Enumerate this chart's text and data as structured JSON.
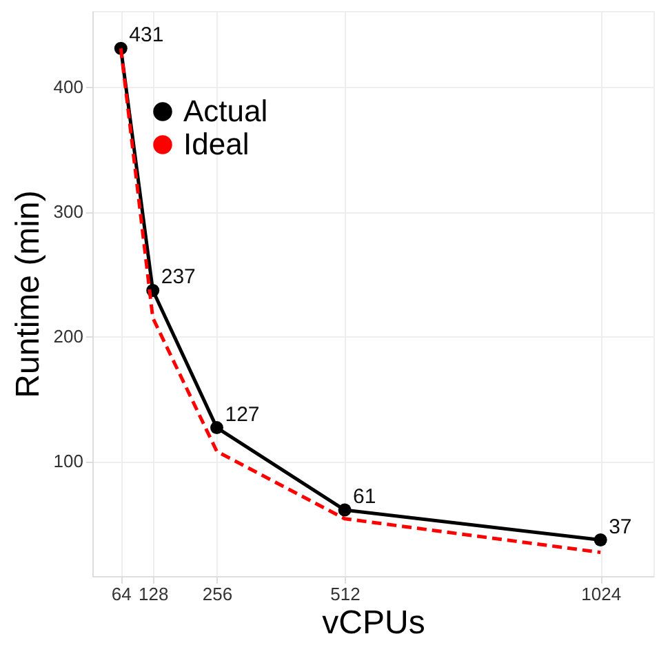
{
  "chart_data": {
    "type": "line",
    "xlabel": "vCPUs",
    "ylabel": "Runtime (min)",
    "x": [
      64,
      128,
      256,
      512,
      1024
    ],
    "series": [
      {
        "name": "Actual",
        "color": "#000000",
        "values": [
          431,
          237,
          127,
          61,
          37
        ],
        "marker": "circle",
        "line_style": "solid",
        "value_labels": [
          "431",
          "237",
          "127",
          "61",
          "37"
        ]
      },
      {
        "name": "Ideal",
        "color": "#ff0000",
        "values": [
          431,
          215,
          108,
          54,
          27
        ],
        "marker": "none",
        "line_style": "dashed"
      }
    ],
    "xlim": [
      7,
      1130
    ],
    "ylim": [
      8,
      461
    ],
    "xticks": [
      64,
      128,
      256,
      512,
      1024
    ],
    "yticks": [
      100,
      200,
      300,
      400
    ],
    "grid": true,
    "legend": "top left"
  }
}
